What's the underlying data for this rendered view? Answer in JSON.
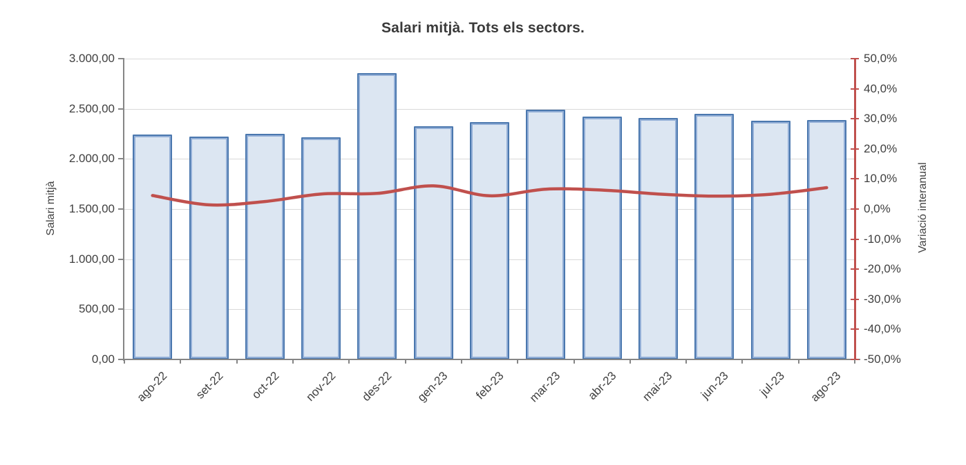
{
  "chart_data": {
    "type": "bar",
    "title": "Salari mitjà. Tots els sectors.",
    "categories": [
      "ago-22",
      "set-22",
      "oct-22",
      "nov-22",
      "des-22",
      "gen-23",
      "feb-23",
      "mar-23",
      "abr-23",
      "mai-23",
      "jun-23",
      "jul-23",
      "ago-23"
    ],
    "series": [
      {
        "name": "Salari mitjà",
        "type": "bar",
        "axis": "left",
        "values": [
          2245,
          2225,
          2250,
          2215,
          2855,
          2325,
          2370,
          2490,
          2420,
          2410,
          2450,
          2380,
          2385
        ]
      },
      {
        "name": "Variació interanual",
        "type": "line",
        "axis": "right",
        "values": [
          4.5,
          1.4,
          2.5,
          5.0,
          5.2,
          7.7,
          4.4,
          6.6,
          6.3,
          5.0,
          4.3,
          4.9,
          7.1
        ]
      }
    ],
    "left_axis": {
      "title": "Salari mitjà",
      "min": 0,
      "max": 3000,
      "step": 500,
      "tick_labels": [
        "3.000,00",
        "2.500,00",
        "2.000,00",
        "1.500,00",
        "1.000,00",
        "500,00",
        "0,00"
      ]
    },
    "right_axis": {
      "title": "Variació interanual",
      "min": -50,
      "max": 50,
      "step": 10,
      "tick_labels": [
        "50,0%",
        "40,0%",
        "30,0%",
        "20,0%",
        "10,0%",
        "0,0%",
        "-10,0%",
        "-20,0%",
        "-30,0%",
        "-40,0%",
        "-50,0%"
      ]
    },
    "grid": true,
    "legend": "none",
    "colors": {
      "bar_fill": "#dce6f2",
      "bar_border": "#4f81bd",
      "line": "#c0504d",
      "right_axis": "#c0504d",
      "axis": "#858585",
      "gridline": "#d9d9d9",
      "text": "#3f3f3f"
    }
  }
}
